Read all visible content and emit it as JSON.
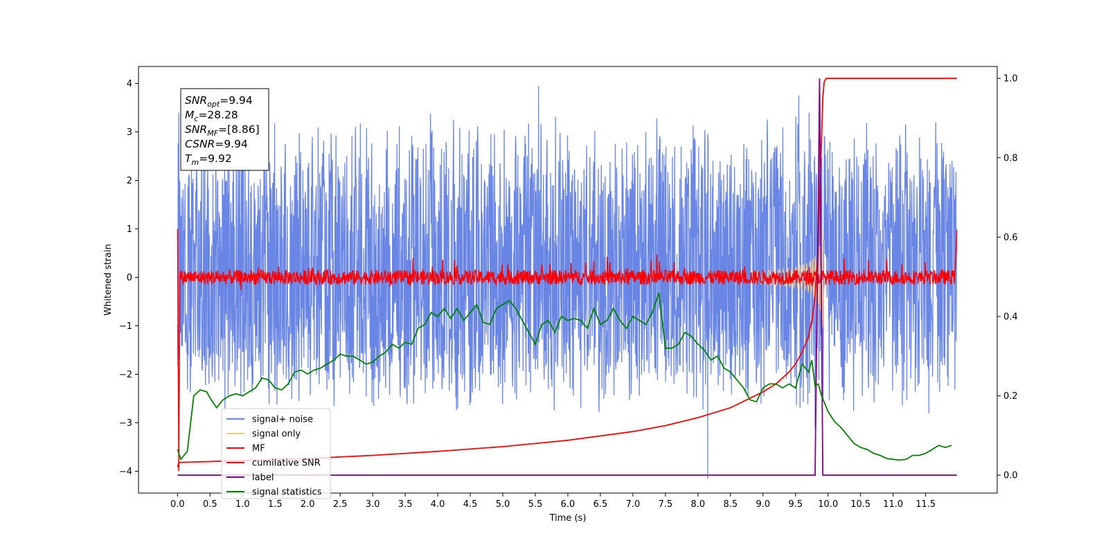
{
  "chart_data": {
    "type": "line",
    "xlabel": "Time (s)",
    "ylabel": "Whitened strain",
    "xlim": [
      -0.6,
      12.6
    ],
    "ylim": [
      -4.45,
      4.35
    ],
    "y2lim": [
      -0.045,
      1.03
    ],
    "x_ticks": [
      "0.0",
      "0.5",
      "1.0",
      "1.5",
      "2.0",
      "2.5",
      "3.0",
      "3.5",
      "4.0",
      "4.5",
      "5.0",
      "5.5",
      "6.0",
      "6.5",
      "7.0",
      "7.5",
      "8.0",
      "8.5",
      "9.0",
      "9.5",
      "10.0",
      "10.5",
      "11.0",
      "11.5"
    ],
    "y_ticks": [
      "−4",
      "−3",
      "−2",
      "−1",
      "0",
      "1",
      "2",
      "3",
      "4"
    ],
    "y2_ticks": [
      "0.0",
      "0.2",
      "0.4",
      "0.6",
      "0.8",
      "1.0"
    ],
    "info_box": [
      {
        "main": "SNR",
        "sub": "opt",
        "rest": "=9.94"
      },
      {
        "main": "M",
        "sub": "c",
        "rest": "=28.28"
      },
      {
        "main": "SNR",
        "sub": "MF",
        "rest": "=[8.86]"
      },
      {
        "main": "CSNR",
        "sub": "",
        "rest": "=9.94"
      },
      {
        "main": "T",
        "sub": "m",
        "rest": "=9.92"
      }
    ],
    "series": [
      {
        "name": "signal+ noise",
        "color": "#6a86e4",
        "axis": "left",
        "kind": "noise",
        "range": [
          -2.9,
          3.5
        ],
        "spikes": [
          [
            0.02,
            3.4
          ],
          [
            5.55,
            3.95
          ],
          [
            8.15,
            -4.15
          ],
          [
            9.55,
            3.75
          ],
          [
            9.8,
            -3.1
          ]
        ]
      },
      {
        "name": "signal only",
        "color": "#f4c879",
        "axis": "left",
        "kind": "chirp",
        "t_merge": 9.92,
        "peak_amplitude": 1.4
      },
      {
        "name": "MF",
        "color": "#ff0000",
        "axis": "left",
        "kind": "noise",
        "range": [
          -0.2,
          0.3
        ],
        "edges": [
          [
            0.0,
            1.0
          ],
          [
            0.02,
            -4.0
          ],
          [
            11.98,
            0.97
          ]
        ]
      },
      {
        "name": "cumilative SNR",
        "color": "#ff0000",
        "axis": "right",
        "kind": "curve",
        "x": [
          0.0,
          0.02,
          1.0,
          2.0,
          3.0,
          4.0,
          5.0,
          6.0,
          7.0,
          7.5,
          8.0,
          8.5,
          9.0,
          9.2,
          9.4,
          9.5,
          9.6,
          9.7,
          9.75,
          9.8,
          9.84,
          9.87,
          9.9,
          9.92,
          9.94,
          9.97,
          10.0,
          11.0,
          11.5,
          11.98
        ],
        "y": [
          0.02,
          0.032,
          0.037,
          0.042,
          0.05,
          0.06,
          0.072,
          0.088,
          0.11,
          0.125,
          0.145,
          0.17,
          0.21,
          0.23,
          0.26,
          0.28,
          0.31,
          0.35,
          0.39,
          0.45,
          0.55,
          0.7,
          0.85,
          0.95,
          0.99,
          1.0,
          1.0,
          1.0,
          1.0,
          1.0
        ]
      },
      {
        "name": "label",
        "color": "#800080",
        "axis": "right",
        "kind": "curve",
        "x": [
          0.0,
          9.8,
          9.85,
          9.87,
          9.92,
          9.94,
          11.98
        ],
        "y": [
          0.0,
          0.0,
          0.7,
          1.0,
          0.0,
          0.0,
          0.0
        ]
      },
      {
        "name": "signal statistics",
        "color": "#008000",
        "axis": "right",
        "kind": "curve",
        "x": [
          0.0,
          0.05,
          0.15,
          0.25,
          0.35,
          0.45,
          0.5,
          0.6,
          0.7,
          0.8,
          0.9,
          1.0,
          1.1,
          1.2,
          1.3,
          1.4,
          1.5,
          1.6,
          1.7,
          1.8,
          1.9,
          2.0,
          2.1,
          2.2,
          2.3,
          2.4,
          2.5,
          2.6,
          2.7,
          2.8,
          2.9,
          3.0,
          3.1,
          3.2,
          3.3,
          3.4,
          3.5,
          3.6,
          3.7,
          3.8,
          3.9,
          4.0,
          4.1,
          4.2,
          4.3,
          4.4,
          4.5,
          4.6,
          4.7,
          4.8,
          4.9,
          5.0,
          5.1,
          5.2,
          5.3,
          5.4,
          5.5,
          5.6,
          5.7,
          5.8,
          5.9,
          6.0,
          6.1,
          6.2,
          6.3,
          6.4,
          6.5,
          6.6,
          6.7,
          6.8,
          6.9,
          7.0,
          7.1,
          7.2,
          7.3,
          7.4,
          7.5,
          7.6,
          7.7,
          7.8,
          7.9,
          8.0,
          8.1,
          8.2,
          8.3,
          8.4,
          8.5,
          8.6,
          8.7,
          8.8,
          8.9,
          9.0,
          9.1,
          9.2,
          9.3,
          9.4,
          9.5,
          9.6,
          9.7,
          9.75,
          9.8,
          9.85,
          9.9,
          10.0,
          10.1,
          10.2,
          10.3,
          10.4,
          10.5,
          10.6,
          10.7,
          10.8,
          10.9,
          11.0,
          11.1,
          11.2,
          11.3,
          11.4,
          11.5,
          11.6,
          11.7,
          11.8,
          11.9
        ],
        "y": [
          0.065,
          0.04,
          0.06,
          0.2,
          0.215,
          0.21,
          0.195,
          0.17,
          0.19,
          0.2,
          0.205,
          0.2,
          0.21,
          0.22,
          0.245,
          0.24,
          0.22,
          0.215,
          0.23,
          0.26,
          0.265,
          0.255,
          0.265,
          0.27,
          0.28,
          0.29,
          0.305,
          0.3,
          0.3,
          0.29,
          0.28,
          0.285,
          0.3,
          0.31,
          0.33,
          0.32,
          0.335,
          0.33,
          0.37,
          0.38,
          0.41,
          0.4,
          0.42,
          0.395,
          0.42,
          0.39,
          0.41,
          0.43,
          0.385,
          0.38,
          0.42,
          0.43,
          0.44,
          0.42,
          0.39,
          0.36,
          0.33,
          0.38,
          0.39,
          0.36,
          0.4,
          0.39,
          0.395,
          0.39,
          0.37,
          0.42,
          0.38,
          0.39,
          0.42,
          0.39,
          0.37,
          0.4,
          0.39,
          0.38,
          0.41,
          0.46,
          0.32,
          0.32,
          0.33,
          0.36,
          0.35,
          0.33,
          0.315,
          0.29,
          0.3,
          0.27,
          0.26,
          0.24,
          0.22,
          0.19,
          0.185,
          0.22,
          0.23,
          0.23,
          0.22,
          0.23,
          0.22,
          0.28,
          0.26,
          0.29,
          0.225,
          0.23,
          0.2,
          0.16,
          0.135,
          0.12,
          0.1,
          0.08,
          0.07,
          0.065,
          0.055,
          0.05,
          0.042,
          0.04,
          0.038,
          0.04,
          0.05,
          0.05,
          0.055,
          0.065,
          0.075,
          0.07,
          0.075
        ]
      }
    ],
    "legend": {
      "placement": "lower-left",
      "entries": [
        "signal+ noise",
        "signal only",
        "MF",
        "cumilative SNR",
        "label",
        "signal statistics"
      ]
    }
  }
}
